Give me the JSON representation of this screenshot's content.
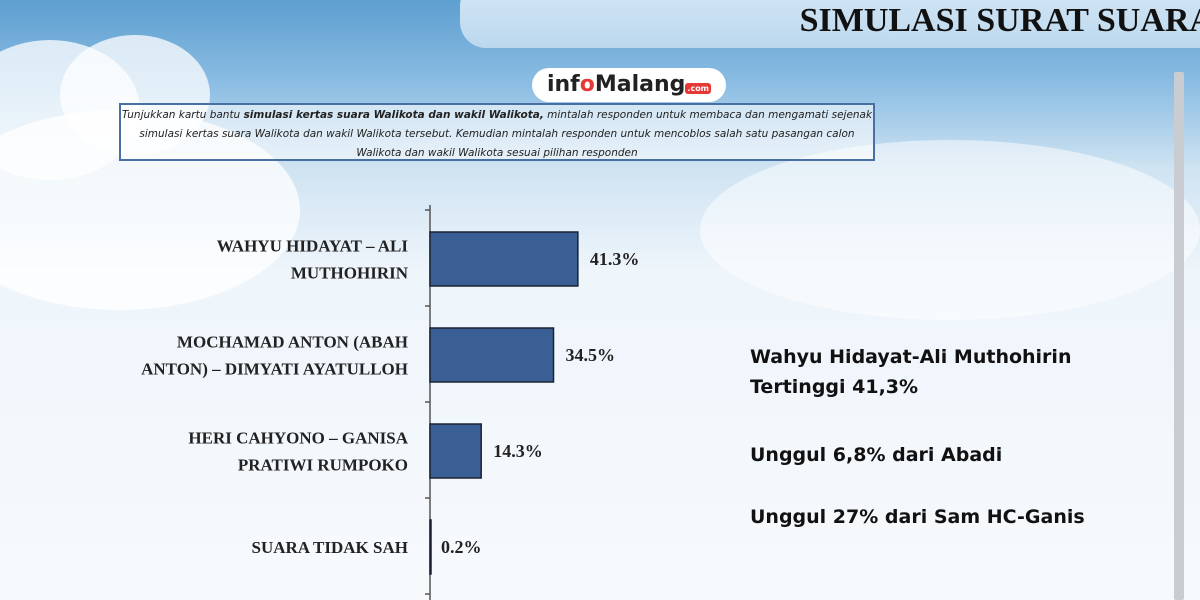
{
  "header": {
    "title": "SIMULASI SURAT SUARA"
  },
  "logo": {
    "text_a": "inf",
    "text_o": "o",
    "text_b": "Malang",
    "text_com": ".com"
  },
  "instruction": {
    "prefix": "Tunjukkan kartu bantu ",
    "bold": "simulasi kertas suara Walikota dan wakil Walikota,",
    "rest": " mintalah responden untuk membaca dan mengamati sejenak simulasi kertas suara Walikota dan wakil Walikota tersebut. Kemudian mintalah responden untuk mencoblos salah satu pasangan calon Walikota dan wakil Walikota sesuai pilihan responden"
  },
  "chart_data": {
    "type": "bar",
    "orientation": "horizontal",
    "categories": [
      [
        "WAHYU HIDAYAT – ALI",
        "MUTHOHIRIN"
      ],
      [
        "MOCHAMAD ANTON (ABAH",
        "ANTON) – DIMYATI AYATULLOH"
      ],
      [
        "HERI CAHYONO – GANISA",
        "PRATIWI RUMPOKO"
      ],
      [
        "SUARA TIDAK SAH"
      ]
    ],
    "values": [
      41.3,
      34.5,
      14.3,
      0.2
    ],
    "value_labels": [
      "41.3%",
      "34.5%",
      "14.3%",
      "0.2%"
    ],
    "unit": "%",
    "bar_color": "#3a5f95",
    "grid": false
  },
  "notes": [
    "Wahyu Hidayat-Ali Muthohirin",
    "Tertinggi 41,3%",
    "Unggul 6,8% dari Abadi",
    "Unggul 27% dari Sam HC-Ganis"
  ]
}
